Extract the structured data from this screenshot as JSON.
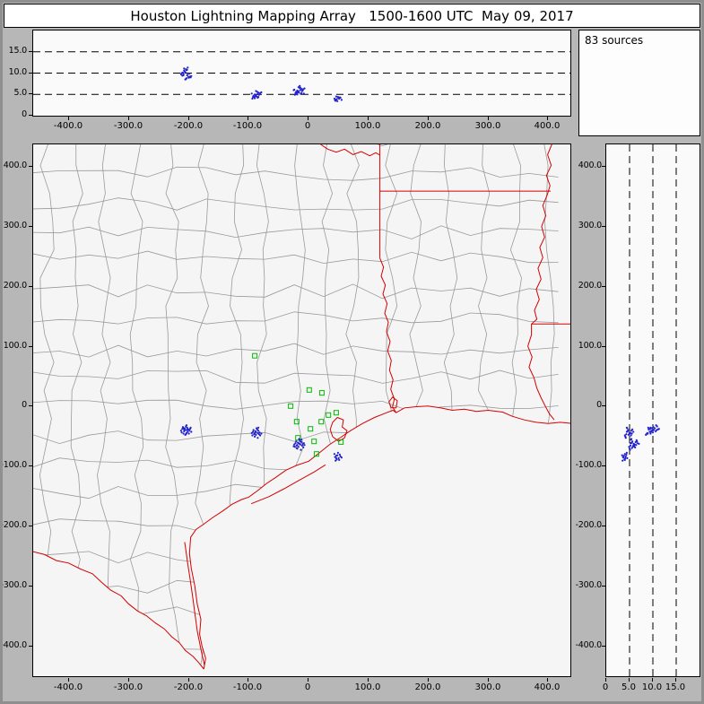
{
  "title": "Houston Lightning Mapping Array   1500-1600 UTC  May 09, 2017",
  "sources_label": "83 sources",
  "axis": {
    "ew": {
      "values": [
        -400,
        -300,
        -200,
        -100,
        0,
        100,
        200,
        300,
        400
      ],
      "labels": [
        "-400.0",
        "-300.0",
        "-200.0",
        "-100.0",
        "0",
        "100.0",
        "200.0",
        "300.0",
        "400.0"
      ]
    },
    "ns": {
      "values": [
        400,
        300,
        200,
        100,
        0,
        -100,
        -200,
        -300,
        -400
      ],
      "labels": [
        "400.0",
        "300.0",
        "200.0",
        "100.0",
        "0",
        "-100.0",
        "-200.0",
        "-300.0",
        "-400.0"
      ]
    },
    "alt": {
      "values": [
        0,
        5,
        10,
        15
      ],
      "labels": [
        "0",
        "5.0",
        "10.0",
        "15.0"
      ]
    }
  },
  "chart_data": {
    "type": "scatter",
    "title": "Houston Lightning Mapping Array 1500-1600 UTC May 09, 2017",
    "source_count": 83,
    "axes": {
      "east_west_km": {
        "range": [
          -460,
          437
        ],
        "ticks": [
          -400,
          -300,
          -200,
          -100,
          0,
          100,
          200,
          300,
          400
        ]
      },
      "north_south_km": {
        "range": [
          -450,
          438
        ],
        "ticks": [
          400,
          300,
          200,
          100,
          0,
          -100,
          -200,
          -300,
          -400
        ]
      },
      "altitude_km": {
        "range": [
          0,
          20
        ],
        "ticks": [
          0,
          5,
          10,
          15
        ],
        "gridlines": [
          5,
          10,
          15
        ]
      }
    },
    "panels": [
      {
        "id": "ew-altitude",
        "x": "east_west_km",
        "y": "altitude_km",
        "position": "top"
      },
      {
        "id": "sources-count",
        "text": "83 sources",
        "position": "top-right"
      },
      {
        "id": "plan-view",
        "x": "east_west_km",
        "y": "north_south_km",
        "position": "main"
      },
      {
        "id": "ns-altitude",
        "x": "altitude_km",
        "y": "north_south_km",
        "position": "right"
      }
    ],
    "stations": [
      [
        -90,
        85
      ],
      [
        -30,
        1
      ],
      [
        1,
        28
      ],
      [
        22,
        23
      ],
      [
        -20,
        -25
      ],
      [
        3,
        -37
      ],
      [
        21,
        -25
      ],
      [
        -18,
        -52
      ],
      [
        9,
        -58
      ],
      [
        33,
        -14
      ],
      [
        46,
        -10
      ],
      [
        13,
        -79
      ],
      [
        54,
        -59
      ]
    ],
    "sources": [
      [
        -209,
        -36,
        9.8
      ],
      [
        -206,
        -39,
        10.2
      ],
      [
        -203,
        -35,
        9.5
      ],
      [
        -208,
        -41,
        10.6
      ],
      [
        -201,
        -38,
        9.1
      ],
      [
        -205,
        -33,
        10.9
      ],
      [
        -211,
        -37,
        9.4
      ],
      [
        -204,
        -44,
        8.8
      ],
      [
        -199,
        -40,
        9.9
      ],
      [
        -207,
        -36,
        10.4
      ],
      [
        -202,
        -42,
        9.6
      ],
      [
        -210,
        -34,
        10.1
      ],
      [
        -205,
        -46,
        8.6
      ],
      [
        -198,
        -37,
        9.2
      ],
      [
        -213,
        -40,
        9.7
      ],
      [
        -204,
        -31,
        10.7
      ],
      [
        -200,
        -45,
        8.9
      ],
      [
        -208,
        -38,
        11.1
      ],
      [
        -196,
        -42,
        9.3
      ],
      [
        -206,
        -47,
        8.5
      ],
      [
        -212,
        -43,
        10.0
      ],
      [
        -203,
        -39,
        10.8
      ],
      [
        -197,
        -35,
        9.0
      ],
      [
        -209,
        -45,
        9.5
      ],
      [
        -202,
        -37,
        11.3
      ],
      [
        -89,
        -41,
        4.6
      ],
      [
        -85,
        -44,
        5.1
      ],
      [
        -91,
        -46,
        4.3
      ],
      [
        -84,
        -40,
        5.4
      ],
      [
        -88,
        -47,
        4.8
      ],
      [
        -82,
        -43,
        5.0
      ],
      [
        -93,
        -42,
        4.4
      ],
      [
        -86,
        -38,
        5.6
      ],
      [
        -90,
        -50,
        4.1
      ],
      [
        -83,
        -46,
        4.9
      ],
      [
        -95,
        -44,
        5.2
      ],
      [
        -87,
        -36,
        4.5
      ],
      [
        -81,
        -48,
        5.3
      ],
      [
        -92,
        -39,
        4.7
      ],
      [
        -85,
        -52,
        4.2
      ],
      [
        -79,
        -45,
        5.5
      ],
      [
        -94,
        -48,
        4.0
      ],
      [
        -88,
        -42,
        5.8
      ],
      [
        -84,
        -35,
        4.4
      ],
      [
        -90,
        -44,
        5.0
      ],
      [
        -18,
        -60,
        5.5
      ],
      [
        -14,
        -63,
        6.0
      ],
      [
        -20,
        -65,
        5.2
      ],
      [
        -12,
        -59,
        6.3
      ],
      [
        -17,
        -67,
        5.7
      ],
      [
        -10,
        -62,
        5.9
      ],
      [
        -22,
        -61,
        5.3
      ],
      [
        -15,
        -56,
        6.5
      ],
      [
        -19,
        -70,
        5.0
      ],
      [
        -11,
        -65,
        5.8
      ],
      [
        -24,
        -63,
        6.1
      ],
      [
        -16,
        -54,
        5.4
      ],
      [
        -9,
        -68,
        6.2
      ],
      [
        -21,
        -58,
        5.6
      ],
      [
        -13,
        -72,
        5.1
      ],
      [
        -7,
        -64,
        6.4
      ],
      [
        -23,
        -67,
        4.9
      ],
      [
        -17,
        -61,
        6.7
      ],
      [
        -12,
        -55,
        5.3
      ],
      [
        -19,
        -64,
        5.9
      ],
      [
        -25,
        -66,
        6.0
      ],
      [
        -14,
        -58,
        6.6
      ],
      [
        -8,
        -61,
        5.2
      ],
      [
        -20,
        -69,
        5.5
      ],
      [
        -15,
        -62,
        7.0
      ],
      [
        46,
        -82,
        3.8
      ],
      [
        50,
        -86,
        4.1
      ],
      [
        44,
        -84,
        3.6
      ],
      [
        52,
        -80,
        4.3
      ],
      [
        47,
        -88,
        3.9
      ],
      [
        43,
        -79,
        4.0
      ],
      [
        55,
        -85,
        3.7
      ],
      [
        49,
        -77,
        4.4
      ],
      [
        45,
        -90,
        3.5
      ],
      [
        53,
        -83,
        4.2
      ],
      [
        48,
        -81,
        3.4
      ],
      [
        51,
        -89,
        4.0
      ],
      [
        46,
        -86,
        4.5
      ]
    ],
    "map_features": {
      "state_lines": [
        {
          "name": "red-river",
          "pts": [
            [
              20,
              438
            ],
            [
              32,
              430
            ],
            [
              46,
              425
            ],
            [
              60,
              430
            ],
            [
              74,
              421
            ],
            [
              88,
              426
            ],
            [
              102,
              419
            ],
            [
              112,
              424
            ],
            [
              119,
              420
            ]
          ]
        },
        {
          "name": "tx-ar-la-border",
          "pts": [
            [
              119,
              438
            ],
            [
              119,
              248
            ]
          ]
        },
        {
          "name": "ar-la-border",
          "pts": [
            [
              119,
              360
            ],
            [
              404,
              360
            ]
          ]
        },
        {
          "name": "sabine-river",
          "pts": [
            [
              119,
              248
            ],
            [
              125,
              233
            ],
            [
              121,
              218
            ],
            [
              128,
              203
            ],
            [
              124,
              188
            ],
            [
              131,
              172
            ],
            [
              127,
              156
            ],
            [
              133,
              141
            ],
            [
              130,
              125
            ],
            [
              136,
              109
            ],
            [
              132,
              93
            ],
            [
              138,
              77
            ],
            [
              135,
              61
            ],
            [
              141,
              45
            ],
            [
              137,
              29
            ],
            [
              143,
              13
            ],
            [
              140,
              0
            ],
            [
              146,
              -10
            ]
          ]
        },
        {
          "name": "mississippi-river",
          "pts": [
            [
              406,
              438
            ],
            [
              399,
              421
            ],
            [
              405,
              403
            ],
            [
              397,
              386
            ],
            [
              403,
              369
            ],
            [
              398,
              353
            ],
            [
              391,
              336
            ],
            [
              396,
              319
            ],
            [
              389,
              301
            ],
            [
              394,
              283
            ],
            [
              386,
              266
            ],
            [
              391,
              249
            ],
            [
              383,
              231
            ],
            [
              388,
              213
            ],
            [
              380,
              196
            ],
            [
              385,
              179
            ],
            [
              377,
              161
            ],
            [
              381,
              146
            ],
            [
              372,
              138
            ],
            [
              372,
              120
            ],
            [
              366,
              101
            ],
            [
              373,
              83
            ],
            [
              368,
              66
            ],
            [
              376,
              49
            ],
            [
              381,
              31
            ],
            [
              388,
              15
            ],
            [
              395,
              1
            ],
            [
              402,
              -12
            ],
            [
              410,
              -22
            ]
          ]
        },
        {
          "name": "la-ms-border",
          "pts": [
            [
              372,
              138
            ],
            [
              445,
              138
            ]
          ]
        },
        {
          "name": "rio-grande",
          "pts": [
            [
              -460,
              -242
            ],
            [
              -441,
              -247
            ],
            [
              -421,
              -257
            ],
            [
              -401,
              -261
            ],
            [
              -381,
              -271
            ],
            [
              -361,
              -279
            ],
            [
              -346,
              -293
            ],
            [
              -331,
              -306
            ],
            [
              -313,
              -316
            ],
            [
              -301,
              -329
            ],
            [
              -286,
              -341
            ],
            [
              -271,
              -349
            ],
            [
              -256,
              -361
            ],
            [
              -241,
              -371
            ],
            [
              -229,
              -384
            ],
            [
              -216,
              -394
            ],
            [
              -206,
              -407
            ],
            [
              -193,
              -417
            ],
            [
              -184,
              -427
            ],
            [
              -175,
              -438
            ]
          ]
        }
      ],
      "coastline": {
        "pts": [
          [
            -175,
            -438
          ],
          [
            -172,
            -420
          ],
          [
            -178,
            -400
          ],
          [
            -182,
            -380
          ],
          [
            -180,
            -355
          ],
          [
            -186,
            -330
          ],
          [
            -190,
            -300
          ],
          [
            -196,
            -270
          ],
          [
            -199,
            -245
          ],
          [
            -197,
            -218
          ],
          [
            -188,
            -205
          ],
          [
            -175,
            -196
          ],
          [
            -160,
            -185
          ],
          [
            -145,
            -175
          ],
          [
            -128,
            -163
          ],
          [
            -112,
            -155
          ],
          [
            -100,
            -151
          ],
          [
            -85,
            -140
          ],
          [
            -70,
            -128
          ],
          [
            -55,
            -118
          ],
          [
            -38,
            -106
          ],
          [
            -20,
            -98
          ],
          [
            0,
            -91
          ],
          [
            18,
            -77
          ],
          [
            35,
            -63
          ],
          [
            54,
            -51
          ],
          [
            70,
            -40
          ],
          [
            90,
            -28
          ],
          [
            110,
            -18
          ],
          [
            130,
            -10
          ],
          [
            141,
            -6
          ],
          [
            146,
            -10
          ],
          [
            160,
            -2
          ],
          [
            180,
            0
          ],
          [
            199,
            1
          ],
          [
            220,
            -2
          ],
          [
            240,
            -6
          ],
          [
            260,
            -4
          ],
          [
            280,
            -8
          ],
          [
            300,
            -6
          ],
          [
            324,
            -9
          ],
          [
            340,
            -16
          ],
          [
            360,
            -22
          ],
          [
            380,
            -26
          ],
          [
            400,
            -28
          ],
          [
            420,
            -26
          ],
          [
            440,
            -28
          ]
        ]
      },
      "islands_bays": [
        {
          "name": "padre-island",
          "pts": [
            [
              -174,
              -432
            ],
            [
              -180,
              -405
            ],
            [
              -186,
              -375
            ],
            [
              -190,
              -345
            ],
            [
              -194,
              -315
            ],
            [
              -198,
              -288
            ],
            [
              -202,
              -262
            ],
            [
              -205,
              -240
            ],
            [
              -207,
              -226
            ]
          ]
        },
        {
          "name": "matagorda-barrier",
          "pts": [
            [
              -96,
              -162
            ],
            [
              -66,
              -150
            ],
            [
              -41,
              -137
            ],
            [
              -16,
              -123
            ],
            [
              9,
              -109
            ],
            [
              28,
              -97
            ]
          ]
        },
        {
          "name": "galveston-bay",
          "pts": [
            [
              40,
              -50
            ],
            [
              36,
              -38
            ],
            [
              40,
              -26
            ],
            [
              48,
              -18
            ],
            [
              58,
              -22
            ],
            [
              56,
              -34
            ],
            [
              64,
              -40
            ],
            [
              60,
              -52
            ],
            [
              50,
              -58
            ],
            [
              40,
              -50
            ]
          ]
        },
        {
          "name": "sabine-lake",
          "pts": [
            [
              138,
              -2
            ],
            [
              134,
              8
            ],
            [
              140,
              16
            ],
            [
              148,
              10
            ],
            [
              146,
              -2
            ],
            [
              138,
              -2
            ]
          ]
        }
      ]
    },
    "style": {
      "source_color": "#2222cc",
      "station_color": "#00bb00",
      "state_border_color": "#d40000",
      "county_color": "#9a9a9a",
      "grid_color": "#000000",
      "frame_bg": "#b7b7b7",
      "panel_bg": "#f5f5f5"
    }
  }
}
